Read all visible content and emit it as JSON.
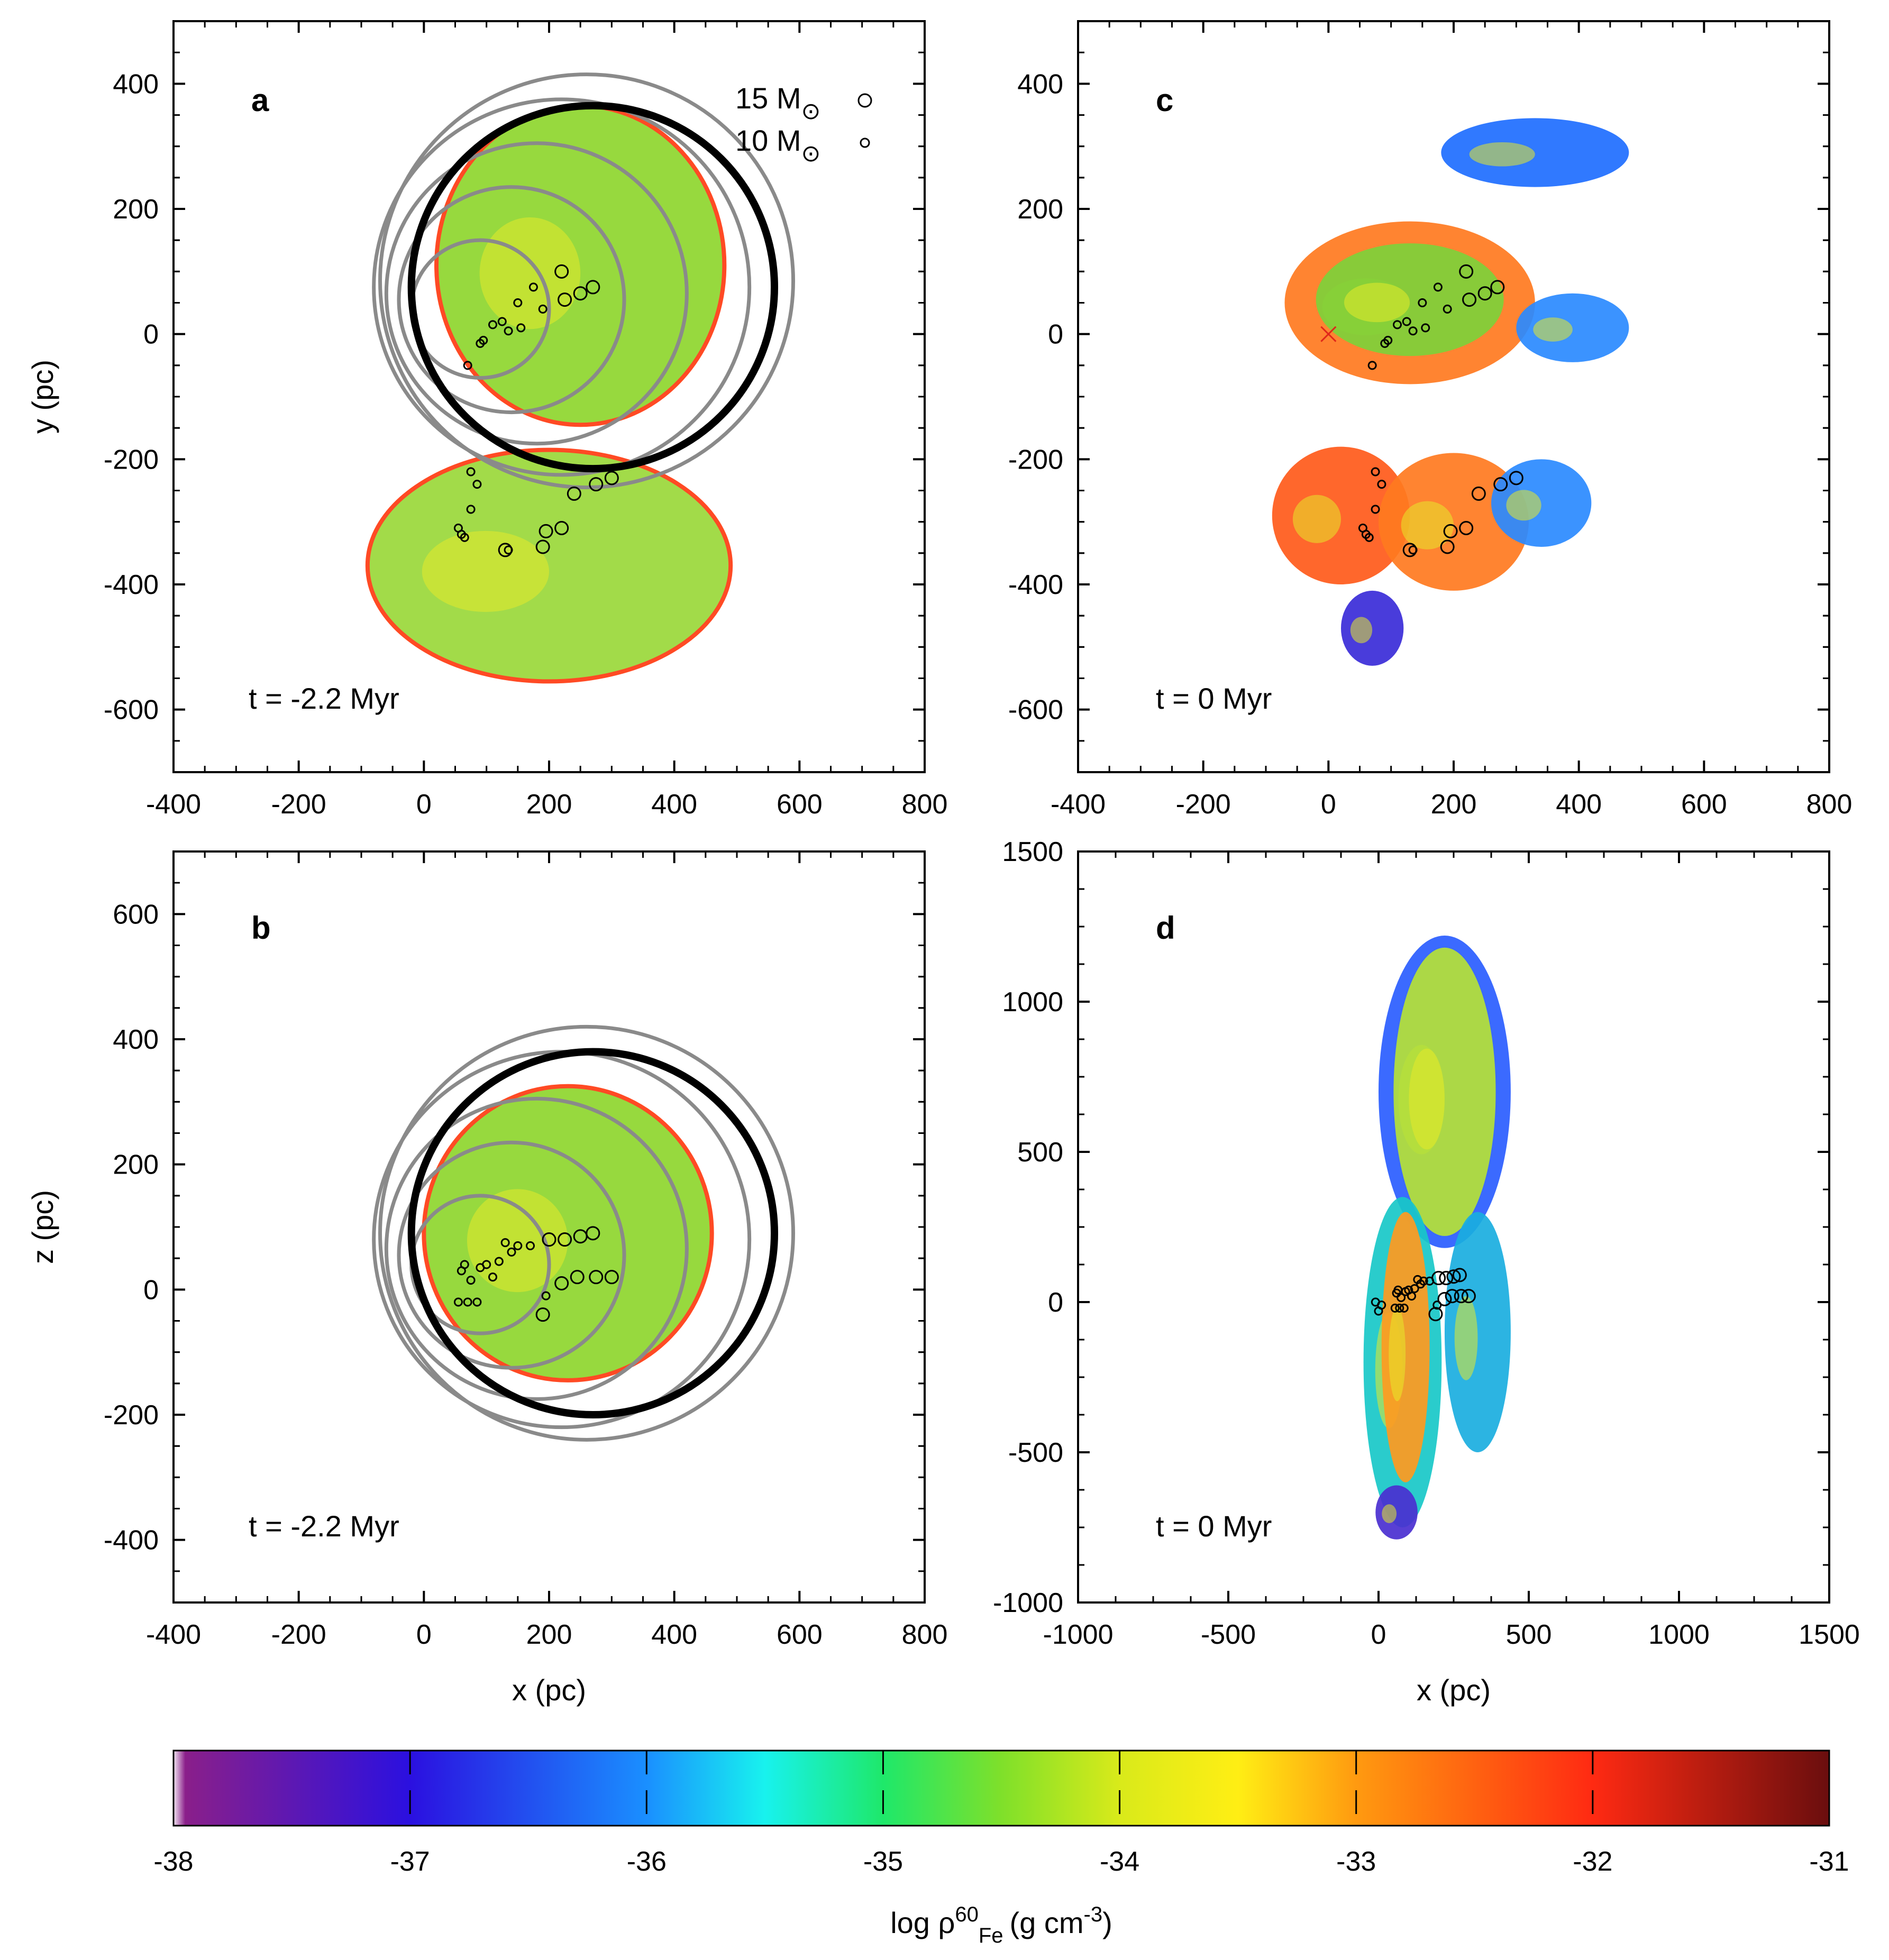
{
  "chart_data": [
    {
      "type": "scatter",
      "panel": "a",
      "time_label": "t = -2.2 Myr",
      "xlabel": "",
      "ylabel": "y (pc)",
      "xlim": [
        -400,
        800
      ],
      "ylim": [
        -700,
        500
      ],
      "xticks": [
        "-400",
        "-200",
        "0",
        "200",
        "400",
        "600",
        "800"
      ],
      "yticks": [
        "-600",
        "-400",
        "-200",
        "0",
        "200",
        "400"
      ],
      "legend": [
        {
          "label": "15 M",
          "subscript": "⊙",
          "marker": "circle-large"
        },
        {
          "label": "10 M",
          "subscript": "⊙",
          "marker": "circle-small"
        }
      ],
      "bounding_circle": {
        "cx": 270,
        "cy": 75,
        "r": 290
      },
      "shock_shells": [
        {
          "cx": 90,
          "cy": 40,
          "r": 110
        },
        {
          "cx": 140,
          "cy": 55,
          "r": 180
        },
        {
          "cx": 180,
          "cy": 65,
          "r": 240
        },
        {
          "cx": 220,
          "cy": 75,
          "r": 300
        },
        {
          "cx": 260,
          "cy": 85,
          "r": 330
        }
      ],
      "bubbles": [
        {
          "cx": 250,
          "cy": 110,
          "rx": 230,
          "ry": 255,
          "color": "#8fd62e"
        },
        {
          "cx": 200,
          "cy": -370,
          "rx": 290,
          "ry": 185,
          "color": "#9bd83a"
        }
      ],
      "stars_large": [
        [
          220,
          100
        ],
        [
          270,
          75
        ],
        [
          250,
          65
        ],
        [
          225,
          55
        ],
        [
          300,
          -230
        ],
        [
          275,
          -240
        ],
        [
          240,
          -255
        ],
        [
          220,
          -310
        ],
        [
          190,
          -340
        ],
        [
          195,
          -315
        ],
        [
          130,
          -345
        ]
      ],
      "stars_small": [
        [
          175,
          75
        ],
        [
          150,
          50
        ],
        [
          190,
          40
        ],
        [
          125,
          20
        ],
        [
          110,
          15
        ],
        [
          155,
          10
        ],
        [
          135,
          5
        ],
        [
          95,
          -10
        ],
        [
          90,
          -15
        ],
        [
          70,
          -50
        ],
        [
          75,
          -220
        ],
        [
          85,
          -240
        ],
        [
          75,
          -280
        ],
        [
          55,
          -310
        ],
        [
          60,
          -320
        ],
        [
          65,
          -325
        ],
        [
          135,
          -345
        ]
      ]
    },
    {
      "type": "scatter",
      "panel": "b",
      "time_label": "t = -2.2 Myr",
      "xlabel": "x (pc)",
      "ylabel": "z (pc)",
      "xlim": [
        -400,
        800
      ],
      "ylim": [
        -500,
        700
      ],
      "xticks": [
        "-400",
        "-200",
        "0",
        "200",
        "400",
        "600",
        "800"
      ],
      "yticks": [
        "-400",
        "-200",
        "0",
        "200",
        "400",
        "600"
      ],
      "bounding_circle": {
        "cx": 270,
        "cy": 90,
        "r": 290
      },
      "shock_shells": [
        {
          "cx": 90,
          "cy": 40,
          "r": 110
        },
        {
          "cx": 140,
          "cy": 55,
          "r": 180
        },
        {
          "cx": 180,
          "cy": 65,
          "r": 240
        },
        {
          "cx": 220,
          "cy": 80,
          "r": 300
        },
        {
          "cx": 260,
          "cy": 90,
          "r": 330
        }
      ],
      "bubbles": [
        {
          "cx": 230,
          "cy": 90,
          "rx": 230,
          "ry": 235,
          "color": "#8fd62e"
        }
      ],
      "stars_large": [
        [
          270,
          90
        ],
        [
          250,
          85
        ],
        [
          225,
          80
        ],
        [
          200,
          80
        ],
        [
          300,
          20
        ],
        [
          275,
          20
        ],
        [
          245,
          20
        ],
        [
          220,
          10
        ],
        [
          190,
          -40
        ]
      ],
      "stars_small": [
        [
          130,
          75
        ],
        [
          150,
          70
        ],
        [
          170,
          70
        ],
        [
          120,
          45
        ],
        [
          100,
          40
        ],
        [
          65,
          40
        ],
        [
          60,
          30
        ],
        [
          90,
          35
        ],
        [
          75,
          15
        ],
        [
          110,
          20
        ],
        [
          140,
          60
        ],
        [
          55,
          -20
        ],
        [
          70,
          -20
        ],
        [
          85,
          -20
        ],
        [
          195,
          -10
        ]
      ]
    },
    {
      "type": "heatmap",
      "panel": "c",
      "time_label": "t = 0 Myr",
      "xlabel": "",
      "ylabel": "",
      "xlim": [
        -400,
        800
      ],
      "ylim": [
        -700,
        500
      ],
      "xticks": [
        "-400",
        "-200",
        "0",
        "200",
        "400",
        "600",
        "800"
      ],
      "yticks": [
        "-600",
        "-400",
        "-200",
        "0",
        "200",
        "400"
      ],
      "blobs": [
        {
          "cx": 130,
          "cy": 50,
          "rx": 200,
          "ry": 130,
          "color": "#ff7a20"
        },
        {
          "cx": 130,
          "cy": 55,
          "rx": 150,
          "ry": 90,
          "color": "#7ed13a"
        },
        {
          "cx": 330,
          "cy": 290,
          "rx": 150,
          "ry": 55,
          "color": "#1e6eff"
        },
        {
          "cx": 390,
          "cy": 10,
          "rx": 90,
          "ry": 55,
          "color": "#2a8aff"
        },
        {
          "cx": 20,
          "cy": -290,
          "rx": 110,
          "ry": 110,
          "color": "#ff5a1a"
        },
        {
          "cx": 200,
          "cy": -300,
          "rx": 120,
          "ry": 110,
          "color": "#ff7a20"
        },
        {
          "cx": 340,
          "cy": -270,
          "rx": 80,
          "ry": 70,
          "color": "#2a8aff"
        },
        {
          "cx": 70,
          "cy": -470,
          "rx": 50,
          "ry": 60,
          "color": "#3a2bd8"
        }
      ],
      "origin_marker": [
        0,
        0
      ],
      "stars_large": [
        [
          220,
          100
        ],
        [
          270,
          75
        ],
        [
          250,
          65
        ],
        [
          225,
          55
        ],
        [
          300,
          -230
        ],
        [
          275,
          -240
        ],
        [
          240,
          -255
        ],
        [
          220,
          -310
        ],
        [
          190,
          -340
        ],
        [
          195,
          -315
        ],
        [
          130,
          -345
        ]
      ],
      "stars_small": [
        [
          175,
          75
        ],
        [
          150,
          50
        ],
        [
          190,
          40
        ],
        [
          125,
          20
        ],
        [
          110,
          15
        ],
        [
          155,
          10
        ],
        [
          135,
          5
        ],
        [
          95,
          -10
        ],
        [
          90,
          -15
        ],
        [
          70,
          -50
        ],
        [
          75,
          -220
        ],
        [
          85,
          -240
        ],
        [
          75,
          -280
        ],
        [
          55,
          -310
        ],
        [
          60,
          -320
        ],
        [
          65,
          -325
        ],
        [
          135,
          -345
        ]
      ]
    },
    {
      "type": "heatmap",
      "panel": "d",
      "time_label": "t = 0 Myr",
      "xlabel": "x (pc)",
      "ylabel": "",
      "xlim": [
        -1000,
        1500
      ],
      "ylim": [
        -1000,
        1500
      ],
      "xticks": [
        "-1000",
        "-500",
        "0",
        "500",
        "1000",
        "1500"
      ],
      "yticks": [
        "-1000",
        "-500",
        "0",
        "500",
        "1000",
        "1500"
      ],
      "blobs": [
        {
          "cx": 220,
          "cy": 700,
          "rx": 220,
          "ry": 520,
          "color": "#2a5dff"
        },
        {
          "cx": 220,
          "cy": 700,
          "rx": 170,
          "ry": 480,
          "color": "#b6e236"
        },
        {
          "cx": 80,
          "cy": -200,
          "rx": 130,
          "ry": 550,
          "color": "#18c8c8"
        },
        {
          "cx": 90,
          "cy": -150,
          "rx": 80,
          "ry": 450,
          "color": "#ff9a20"
        },
        {
          "cx": 330,
          "cy": -100,
          "rx": 110,
          "ry": 400,
          "color": "#1aaee0"
        },
        {
          "cx": 60,
          "cy": -700,
          "rx": 70,
          "ry": 90,
          "color": "#4a2fd0"
        }
      ],
      "stars_large": [
        [
          270,
          90
        ],
        [
          250,
          85
        ],
        [
          225,
          80
        ],
        [
          200,
          80
        ],
        [
          300,
          20
        ],
        [
          275,
          20
        ],
        [
          245,
          20
        ],
        [
          220,
          10
        ],
        [
          190,
          -40
        ]
      ],
      "stars_small": [
        [
          130,
          75
        ],
        [
          150,
          70
        ],
        [
          170,
          70
        ],
        [
          120,
          45
        ],
        [
          100,
          40
        ],
        [
          65,
          40
        ],
        [
          60,
          30
        ],
        [
          90,
          35
        ],
        [
          75,
          15
        ],
        [
          110,
          20
        ],
        [
          140,
          60
        ],
        [
          55,
          -20
        ],
        [
          70,
          -20
        ],
        [
          85,
          -20
        ],
        [
          195,
          -10
        ],
        [
          -10,
          0
        ],
        [
          0,
          -30
        ],
        [
          10,
          -10
        ]
      ]
    },
    {
      "type": "colorbar",
      "label_prefix": "log ρ",
      "label_superscript": "60",
      "label_subscript": "Fe",
      "label_units_base": "(g cm",
      "label_units_exp": "-3",
      "label_units_close": ")",
      "range": [
        -38,
        -31
      ],
      "ticks": [
        "-38",
        "-37",
        "-36",
        "-35",
        "-34",
        "-33",
        "-32",
        "-31"
      ],
      "stops": [
        {
          "value": -38.0,
          "color": "#f2e6f2"
        },
        {
          "value": -37.95,
          "color": "#8a1f8a"
        },
        {
          "value": -37.0,
          "color": "#2b10e0"
        },
        {
          "value": -36.0,
          "color": "#1a8fff"
        },
        {
          "value": -35.5,
          "color": "#18f2ee"
        },
        {
          "value": -35.0,
          "color": "#1ee86a"
        },
        {
          "value": -34.5,
          "color": "#7fe02a"
        },
        {
          "value": -34.0,
          "color": "#d9ea1a"
        },
        {
          "value": -33.5,
          "color": "#ffee14"
        },
        {
          "value": -33.0,
          "color": "#ff9a10"
        },
        {
          "value": -32.0,
          "color": "#ff2a12"
        },
        {
          "value": -31.0,
          "color": "#6a0e0e"
        }
      ]
    }
  ],
  "colors": {
    "axis": "#000000",
    "shell": "#8a8a8a",
    "circle": "#000000",
    "rim": "#ff3b12",
    "star_marker": "#000000",
    "origin_marker": "#e0261a"
  }
}
